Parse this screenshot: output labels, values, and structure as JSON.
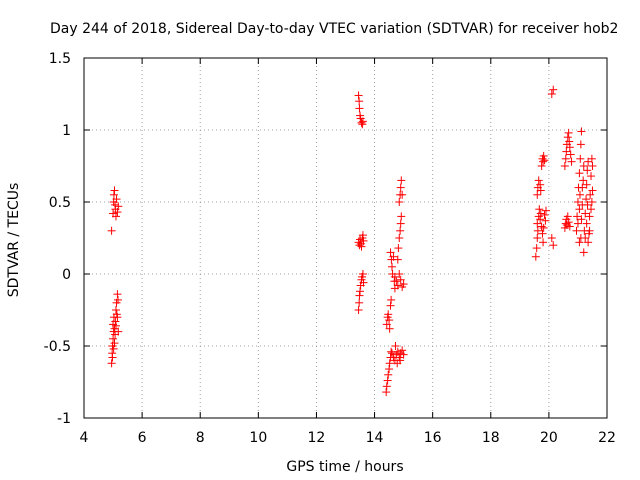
{
  "chart_data": {
    "type": "scatter",
    "title": "Day 244 of 2018, Sidereal Day-to-day VTEC variation (SDTVAR) for receiver hob2",
    "xlabel": "GPS time / hours",
    "ylabel": "SDTVAR / TECUs",
    "xlim": [
      4,
      22
    ],
    "ylim": [
      -1,
      1.5
    ],
    "xticks": [
      4,
      6,
      8,
      10,
      12,
      14,
      16,
      18,
      20,
      22
    ],
    "yticks": [
      1.5,
      1,
      0.5,
      0,
      -0.5,
      -1
    ],
    "ytick_labels": [
      "1.5",
      "1",
      "0.5",
      "0",
      "-0.5",
      "-1"
    ],
    "grid": true,
    "marker": "+",
    "color": "#ff0000",
    "series": [
      {
        "name": "SDTVAR",
        "points": [
          [
            4.95,
            0.3
          ],
          [
            5.0,
            0.42
          ],
          [
            5.02,
            0.5
          ],
          [
            5.03,
            0.55
          ],
          [
            5.05,
            0.58
          ],
          [
            5.07,
            0.48
          ],
          [
            5.08,
            0.45
          ],
          [
            5.1,
            0.4
          ],
          [
            5.12,
            0.52
          ],
          [
            5.15,
            0.43
          ],
          [
            5.18,
            0.47
          ],
          [
            4.95,
            -0.62
          ],
          [
            4.97,
            -0.55
          ],
          [
            4.98,
            -0.5
          ],
          [
            5.0,
            -0.45
          ],
          [
            5.0,
            -0.35
          ],
          [
            5.02,
            -0.4
          ],
          [
            5.03,
            -0.3
          ],
          [
            5.05,
            -0.48
          ],
          [
            5.05,
            -0.38
          ],
          [
            5.07,
            -0.42
          ],
          [
            5.08,
            -0.33
          ],
          [
            5.1,
            -0.25
          ],
          [
            5.1,
            -0.36
          ],
          [
            5.12,
            -0.2
          ],
          [
            5.13,
            -0.28
          ],
          [
            5.15,
            -0.14
          ],
          [
            5.15,
            -0.3
          ],
          [
            5.17,
            -0.18
          ],
          [
            5.18,
            -0.4
          ],
          [
            4.98,
            -0.58
          ],
          [
            5.02,
            -0.52
          ],
          [
            13.45,
            1.24
          ],
          [
            13.47,
            1.2
          ],
          [
            13.48,
            1.15
          ],
          [
            13.5,
            1.1
          ],
          [
            13.52,
            1.08
          ],
          [
            13.55,
            1.05
          ],
          [
            13.58,
            1.04
          ],
          [
            13.6,
            1.06
          ],
          [
            13.45,
            0.22
          ],
          [
            13.48,
            0.2
          ],
          [
            13.5,
            0.24
          ],
          [
            13.53,
            0.21
          ],
          [
            13.55,
            0.19
          ],
          [
            13.58,
            0.25
          ],
          [
            13.6,
            0.27
          ],
          [
            13.62,
            0.23
          ],
          [
            13.45,
            -0.25
          ],
          [
            13.47,
            -0.2
          ],
          [
            13.48,
            -0.15
          ],
          [
            13.5,
            -0.12
          ],
          [
            13.52,
            -0.08
          ],
          [
            13.55,
            -0.04
          ],
          [
            13.57,
            -0.02
          ],
          [
            13.6,
            0.0
          ],
          [
            13.62,
            -0.06
          ],
          [
            14.4,
            -0.82
          ],
          [
            14.42,
            -0.78
          ],
          [
            14.45,
            -0.74
          ],
          [
            14.47,
            -0.7
          ],
          [
            14.5,
            -0.66
          ],
          [
            14.52,
            -0.62
          ],
          [
            14.55,
            -0.58
          ],
          [
            14.57,
            -0.54
          ],
          [
            14.42,
            -0.35
          ],
          [
            14.45,
            -0.3
          ],
          [
            14.47,
            -0.28
          ],
          [
            14.5,
            -0.32
          ],
          [
            14.52,
            -0.38
          ],
          [
            14.55,
            -0.22
          ],
          [
            14.57,
            -0.18
          ],
          [
            14.55,
            0.15
          ],
          [
            14.58,
            0.1
          ],
          [
            14.6,
            0.05
          ],
          [
            14.62,
            0.0
          ],
          [
            14.65,
            0.12
          ],
          [
            14.68,
            -0.05
          ],
          [
            14.7,
            -0.02
          ],
          [
            14.6,
            -0.55
          ],
          [
            14.65,
            -0.58
          ],
          [
            14.7,
            -0.6
          ],
          [
            14.75,
            -0.56
          ],
          [
            14.8,
            -0.54
          ],
          [
            14.85,
            -0.58
          ],
          [
            14.9,
            -0.55
          ],
          [
            14.95,
            -0.53
          ],
          [
            15.0,
            -0.56
          ],
          [
            14.72,
            -0.5
          ],
          [
            14.78,
            -0.62
          ],
          [
            14.88,
            -0.6
          ],
          [
            14.7,
            -0.1
          ],
          [
            14.75,
            -0.05
          ],
          [
            14.8,
            -0.08
          ],
          [
            14.85,
            0.0
          ],
          [
            14.9,
            -0.04
          ],
          [
            14.95,
            -0.09
          ],
          [
            15.0,
            -0.07
          ],
          [
            14.8,
            0.1
          ],
          [
            14.82,
            0.18
          ],
          [
            14.85,
            0.25
          ],
          [
            14.88,
            0.3
          ],
          [
            14.9,
            0.35
          ],
          [
            14.92,
            0.4
          ],
          [
            14.85,
            0.5
          ],
          [
            14.88,
            0.55
          ],
          [
            14.9,
            0.6
          ],
          [
            14.92,
            0.65
          ],
          [
            14.95,
            0.55
          ],
          [
            19.55,
            0.12
          ],
          [
            19.58,
            0.18
          ],
          [
            19.6,
            0.25
          ],
          [
            19.6,
            0.35
          ],
          [
            19.62,
            0.3
          ],
          [
            19.65,
            0.4
          ],
          [
            19.67,
            0.45
          ],
          [
            19.7,
            0.38
          ],
          [
            19.72,
            0.42
          ],
          [
            19.75,
            0.33
          ],
          [
            19.78,
            0.28
          ],
          [
            19.8,
            0.22
          ],
          [
            19.82,
            0.32
          ],
          [
            19.85,
            0.41
          ],
          [
            19.88,
            0.37
          ],
          [
            19.9,
            0.44
          ],
          [
            19.6,
            0.55
          ],
          [
            19.62,
            0.6
          ],
          [
            19.65,
            0.65
          ],
          [
            19.7,
            0.62
          ],
          [
            19.72,
            0.58
          ],
          [
            19.75,
            0.75
          ],
          [
            19.78,
            0.8
          ],
          [
            19.8,
            0.78
          ],
          [
            19.82,
            0.82
          ],
          [
            19.85,
            0.79
          ],
          [
            20.1,
            1.25
          ],
          [
            20.15,
            1.28
          ],
          [
            20.15,
            0.2
          ],
          [
            20.1,
            0.25
          ],
          [
            20.55,
            0.75
          ],
          [
            20.58,
            0.8
          ],
          [
            20.6,
            0.85
          ],
          [
            20.62,
            0.9
          ],
          [
            20.65,
            0.95
          ],
          [
            20.68,
            0.98
          ],
          [
            20.7,
            0.92
          ],
          [
            20.72,
            0.88
          ],
          [
            20.75,
            0.83
          ],
          [
            20.78,
            0.78
          ],
          [
            20.55,
            0.32
          ],
          [
            20.58,
            0.35
          ],
          [
            20.6,
            0.38
          ],
          [
            20.62,
            0.34
          ],
          [
            20.65,
            0.4
          ],
          [
            20.68,
            0.36
          ],
          [
            20.72,
            0.33
          ],
          [
            20.95,
            0.3
          ],
          [
            20.97,
            0.4
          ],
          [
            21.0,
            0.5
          ],
          [
            21.02,
            0.6
          ],
          [
            21.05,
            0.7
          ],
          [
            21.08,
            0.8
          ],
          [
            21.1,
            0.9
          ],
          [
            21.12,
            0.99
          ],
          [
            21.0,
            0.35
          ],
          [
            21.05,
            0.45
          ],
          [
            21.07,
            0.55
          ],
          [
            21.1,
            0.25
          ],
          [
            21.12,
            0.38
          ],
          [
            21.15,
            0.48
          ],
          [
            21.18,
            0.65
          ],
          [
            21.2,
            0.75
          ],
          [
            21.22,
            0.3
          ],
          [
            21.25,
            0.42
          ],
          [
            21.28,
            0.52
          ],
          [
            21.3,
            0.62
          ],
          [
            21.32,
            0.72
          ],
          [
            21.35,
            0.78
          ],
          [
            21.38,
            0.28
          ],
          [
            21.4,
            0.4
          ],
          [
            21.42,
            0.55
          ],
          [
            21.45,
            0.68
          ],
          [
            21.48,
            0.8
          ],
          [
            21.5,
            0.58
          ],
          [
            21.2,
            0.15
          ],
          [
            21.25,
            0.25
          ],
          [
            21.3,
            0.35
          ],
          [
            21.35,
            0.22
          ],
          [
            21.4,
            0.3
          ],
          [
            21.45,
            0.45
          ],
          [
            21.15,
            0.6
          ],
          [
            21.05,
            0.22
          ],
          [
            21.5,
            0.75
          ],
          [
            21.48,
            0.5
          ],
          [
            21.33,
            0.48
          ]
        ]
      }
    ]
  }
}
